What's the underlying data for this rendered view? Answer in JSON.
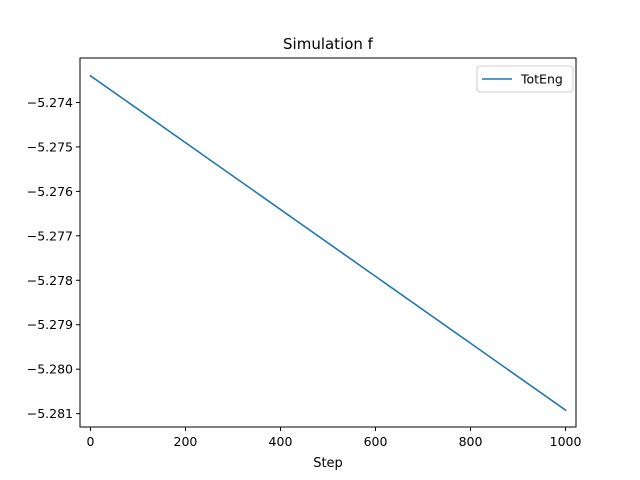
{
  "chart_data": {
    "type": "line",
    "title": "Simulation f",
    "xlabel": "Step",
    "ylabel": "",
    "xlim": [
      -22,
      1022
    ],
    "ylim": [
      -5.2813,
      -5.273
    ],
    "xticks": [
      0,
      200,
      400,
      600,
      800,
      1000
    ],
    "xtick_labels": [
      "0",
      "200",
      "400",
      "600",
      "800",
      "1000"
    ],
    "yticks": [
      -5.274,
      -5.275,
      -5.276,
      -5.277,
      -5.278,
      -5.279,
      -5.28,
      -5.281
    ],
    "ytick_labels": [
      "−5.274",
      "−5.275",
      "−5.276",
      "−5.277",
      "−5.278",
      "−5.279",
      "−5.280",
      "−5.281"
    ],
    "grid": false,
    "legend_position": "top-right",
    "series": [
      {
        "name": "TotEng",
        "color": "#1f77b4",
        "x": [
          0,
          1000
        ],
        "y": [
          -5.2734,
          -5.28092
        ]
      }
    ]
  }
}
